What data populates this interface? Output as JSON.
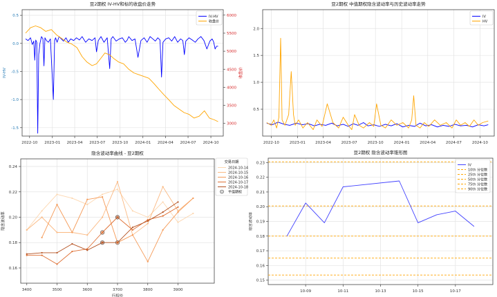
{
  "chart_data": [
    {
      "id": "p1",
      "type": "line",
      "title": "豆2期权 IV-HV和标的收盘价走势",
      "xlabel": "",
      "ylabel": "IV-HV",
      "y2label": "收盘价",
      "xlim": [
        "2022-09-01",
        "2024-11-20"
      ],
      "ylim": [
        -1.65,
        0.6
      ],
      "y2lim": [
        2650,
        6150
      ],
      "xticks": [
        "2022-10-01",
        "2023-01-01",
        "2023-04-01",
        "2023-07-01",
        "2023-10-01",
        "2024-01-01",
        "2024-04-01",
        "2024-07-01",
        "2024-10-01"
      ],
      "xticklabels": [
        "2022-10",
        "2023-01",
        "2023-04",
        "2023-07",
        "2023-10",
        "2024-01",
        "2024-04",
        "2024-07",
        "2024-10"
      ],
      "yticks": [
        -1.5,
        -1.0,
        -0.5,
        0.0,
        0.5
      ],
      "yticklabels": [
        "-1.5",
        "-1.0",
        "-0.5",
        "0.0",
        "0.5"
      ],
      "y2ticks": [
        3000,
        3500,
        4000,
        4500,
        5000,
        5500,
        6000
      ],
      "y2ticklabels": [
        "3000",
        "3500",
        "4000",
        "4500",
        "5000",
        "5500",
        "6000"
      ],
      "grid": true,
      "legend_position": "top-right",
      "legend": [
        "IV-HV",
        "收盘价"
      ],
      "series": [
        {
          "name": "IV-HV",
          "axis": "left",
          "color": "#0000ff",
          "x": [
            "2022-09-15",
            "2022-09-25",
            "2022-10-05",
            "2022-10-12",
            "2022-10-18",
            "2022-10-22",
            "2022-10-26",
            "2022-10-30",
            "2022-11-03",
            "2022-11-07",
            "2022-11-12",
            "2022-11-18",
            "2022-11-24",
            "2022-11-28",
            "2022-12-02",
            "2022-12-08",
            "2022-12-16",
            "2022-12-24",
            "2023-01-05",
            "2023-01-10",
            "2023-01-14",
            "2023-01-20",
            "2023-01-28",
            "2023-02-06",
            "2023-02-15",
            "2023-02-25",
            "2023-03-06",
            "2023-03-16",
            "2023-03-28",
            "2023-04-08",
            "2023-04-20",
            "2023-05-01",
            "2023-05-15",
            "2023-05-28",
            "2023-06-10",
            "2023-06-22",
            "2023-06-28",
            "2023-07-05",
            "2023-07-16",
            "2023-07-28",
            "2023-08-10",
            "2023-08-20",
            "2023-08-26",
            "2023-09-02",
            "2023-09-15",
            "2023-09-28",
            "2023-10-10",
            "2023-10-22",
            "2023-10-30",
            "2023-11-05",
            "2023-11-18",
            "2023-11-30",
            "2023-12-12",
            "2023-12-24",
            "2024-01-06",
            "2024-01-18",
            "2024-01-30",
            "2024-02-10",
            "2024-02-20",
            "2024-03-01",
            "2024-03-10",
            "2024-03-16",
            "2024-03-22",
            "2024-04-02",
            "2024-04-14",
            "2024-04-26",
            "2024-05-08",
            "2024-05-20",
            "2024-06-01",
            "2024-06-10",
            "2024-06-16",
            "2024-06-22",
            "2024-07-05",
            "2024-07-18",
            "2024-07-30",
            "2024-08-10",
            "2024-08-22",
            "2024-09-03",
            "2024-09-15",
            "2024-09-27",
            "2024-10-06",
            "2024-10-12",
            "2024-10-18",
            "2024-10-24",
            "2024-10-30"
          ],
          "y": [
            0.08,
            0.05,
            0.1,
            -0.02,
            0.04,
            -0.3,
            0.06,
            0.02,
            -1.6,
            -0.2,
            0.0,
            0.12,
            0.08,
            -0.4,
            0.1,
            0.05,
            0.02,
            0.08,
            -1.0,
            0.05,
            0.1,
            0.02,
            0.12,
            0.08,
            0.04,
            0.1,
            0.02,
            0.08,
            0.05,
            0.1,
            0.06,
            0.12,
            0.02,
            0.08,
            0.05,
            0.1,
            -0.15,
            0.05,
            0.12,
            0.02,
            0.1,
            -0.45,
            0.08,
            0.12,
            0.04,
            0.08,
            0.1,
            0.02,
            0.06,
            0.12,
            0.05,
            0.08,
            -0.25,
            0.05,
            0.1,
            0.02,
            0.12,
            0.08,
            0.04,
            0.1,
            0.06,
            -0.6,
            0.02,
            0.08,
            0.1,
            0.04,
            0.12,
            0.02,
            0.08,
            0.05,
            -0.2,
            0.04,
            0.1,
            0.06,
            0.02,
            0.08,
            0.12,
            0.05,
            -0.1,
            0.04,
            0.08,
            0.03,
            -0.1,
            -0.05,
            -0.05
          ]
        },
        {
          "name": "收盘价",
          "axis": "right",
          "color": "#ffa500",
          "x": [
            "2022-09-15",
            "2022-10-05",
            "2022-10-25",
            "2022-11-15",
            "2022-12-05",
            "2022-12-28",
            "2023-01-18",
            "2023-02-08",
            "2023-03-01",
            "2023-03-20",
            "2023-04-10",
            "2023-05-01",
            "2023-05-20",
            "2023-06-10",
            "2023-06-28",
            "2023-07-15",
            "2023-08-01",
            "2023-08-20",
            "2023-09-05",
            "2023-09-25",
            "2023-10-15",
            "2023-11-05",
            "2023-11-25",
            "2023-12-15",
            "2024-01-05",
            "2024-01-25",
            "2024-02-15",
            "2024-03-05",
            "2024-03-25",
            "2024-04-15",
            "2024-05-05",
            "2024-05-25",
            "2024-06-15",
            "2024-07-05",
            "2024-07-25",
            "2024-08-15",
            "2024-09-05",
            "2024-09-25",
            "2024-10-15",
            "2024-10-30"
          ],
          "y": [
            5500,
            5650,
            5700,
            5650,
            5550,
            5600,
            5450,
            5350,
            5250,
            5200,
            5100,
            4850,
            4700,
            4600,
            4650,
            4800,
            4950,
            4900,
            4800,
            4700,
            4650,
            4500,
            4400,
            4350,
            4300,
            4250,
            4100,
            3950,
            3800,
            3650,
            3500,
            3400,
            3300,
            3250,
            3150,
            3200,
            3350,
            3150,
            3100,
            3050
          ]
        }
      ]
    },
    {
      "id": "p2",
      "type": "line",
      "title": "豆2期权 中值期权隐含波动率与历史波动率走势",
      "xlabel": "",
      "ylabel": "",
      "xlim": [
        "2022-09-01",
        "2024-11-20"
      ],
      "ylim": [
        0.0,
        2.35
      ],
      "xticks": [
        "2022-10-01",
        "2023-01-01",
        "2023-04-01",
        "2023-07-01",
        "2023-10-01",
        "2024-01-01",
        "2024-04-01",
        "2024-07-01",
        "2024-10-01"
      ],
      "xticklabels": [
        "2022-10",
        "2023-01",
        "2023-04",
        "2023-07",
        "2023-10",
        "2024-01",
        "2024-04",
        "2024-07",
        "2024-10"
      ],
      "yticks": [
        0.5,
        1.0,
        1.5,
        2.0
      ],
      "yticklabels": [
        "0.5",
        "1.0",
        "1.5",
        "2.0"
      ],
      "grid": true,
      "legend_position": "top-right",
      "legend": [
        "IV",
        "HV"
      ],
      "series": [
        {
          "name": "IV",
          "color": "#0000ff",
          "x": [
            "2022-09-15",
            "2022-10-05",
            "2022-10-25",
            "2022-11-15",
            "2022-12-05",
            "2022-12-28",
            "2023-01-18",
            "2023-02-08",
            "2023-03-01",
            "2023-03-20",
            "2023-04-10",
            "2023-05-01",
            "2023-05-20",
            "2023-06-10",
            "2023-06-28",
            "2023-07-15",
            "2023-08-01",
            "2023-08-20",
            "2023-09-05",
            "2023-09-25",
            "2023-10-15",
            "2023-11-05",
            "2023-11-25",
            "2023-12-15",
            "2024-01-05",
            "2024-01-25",
            "2024-02-15",
            "2024-03-05",
            "2024-03-25",
            "2024-04-15",
            "2024-05-05",
            "2024-05-25",
            "2024-06-15",
            "2024-07-05",
            "2024-07-25",
            "2024-08-15",
            "2024-09-05",
            "2024-09-25",
            "2024-10-15",
            "2024-10-30"
          ],
          "y": [
            0.24,
            0.21,
            0.26,
            0.22,
            0.2,
            0.24,
            0.21,
            0.23,
            0.19,
            0.22,
            0.2,
            0.24,
            0.19,
            0.22,
            0.18,
            0.23,
            0.2,
            0.25,
            0.19,
            0.21,
            0.18,
            0.22,
            0.19,
            0.23,
            0.17,
            0.2,
            0.18,
            0.24,
            0.19,
            0.21,
            0.17,
            0.2,
            0.18,
            0.22,
            0.19,
            0.2,
            0.17,
            0.21,
            0.19,
            0.21
          ]
        },
        {
          "name": "HV",
          "color": "#ffa500",
          "x": [
            "2022-09-15",
            "2022-10-01",
            "2022-10-10",
            "2022-10-20",
            "2022-10-28",
            "2022-11-03",
            "2022-11-08",
            "2022-11-18",
            "2022-12-01",
            "2022-12-10",
            "2022-12-18",
            "2022-12-24",
            "2023-01-05",
            "2023-01-20",
            "2023-02-05",
            "2023-02-25",
            "2023-03-10",
            "2023-03-28",
            "2023-04-15",
            "2023-05-05",
            "2023-05-25",
            "2023-06-10",
            "2023-06-28",
            "2023-07-10",
            "2023-07-20",
            "2023-08-05",
            "2023-08-20",
            "2023-09-10",
            "2023-09-25",
            "2023-10-05",
            "2023-10-20",
            "2023-11-05",
            "2023-11-25",
            "2023-12-15",
            "2024-01-05",
            "2024-01-25",
            "2024-02-05",
            "2024-02-12",
            "2024-02-20",
            "2024-03-05",
            "2024-03-20",
            "2024-04-05",
            "2024-04-25",
            "2024-05-15",
            "2024-06-05",
            "2024-06-25",
            "2024-07-10",
            "2024-07-25",
            "2024-08-10",
            "2024-08-25",
            "2024-09-10",
            "2024-09-25",
            "2024-10-10",
            "2024-10-30"
          ],
          "y": [
            0.25,
            0.2,
            0.3,
            0.15,
            0.35,
            1.82,
            0.3,
            0.2,
            0.4,
            1.2,
            0.4,
            0.2,
            0.3,
            0.15,
            0.25,
            0.12,
            0.3,
            0.18,
            0.6,
            0.25,
            0.15,
            0.35,
            0.2,
            0.12,
            0.4,
            0.2,
            0.15,
            0.25,
            0.18,
            0.6,
            0.2,
            0.15,
            0.3,
            0.2,
            0.25,
            0.15,
            0.3,
            0.75,
            0.2,
            0.15,
            0.25,
            0.18,
            0.3,
            0.2,
            0.25,
            0.15,
            0.3,
            0.2,
            0.25,
            0.18,
            0.3,
            0.2,
            0.25,
            0.28
          ]
        }
      ]
    },
    {
      "id": "p3",
      "type": "line",
      "title": "隐含波动率曲线 - 豆2期权",
      "xlabel": "行权价",
      "ylabel": "隐含波动率",
      "xlim": [
        3380,
        4020
      ],
      "ylim": [
        0.148,
        0.246
      ],
      "xticks": [
        3400,
        3500,
        3600,
        3700,
        3800,
        3900
      ],
      "xticklabels": [
        "3400",
        "3500",
        "3600",
        "3700",
        "3800",
        "3900"
      ],
      "yticks": [
        0.16,
        0.18,
        0.2,
        0.22,
        0.24
      ],
      "yticklabels": [
        "0.16",
        "0.18",
        "0.20",
        "0.22",
        "0.24"
      ],
      "grid": true,
      "legend_title": "交易日期",
      "legend_position": "upper-right-outside",
      "legend": [
        "2024-10-14",
        "2024-10-15",
        "2024-10-16",
        "2024-10-17",
        "2024-10-18",
        "平值期权"
      ],
      "series": [
        {
          "name": "2024-10-14",
          "color": "#fdd7b0",
          "x": [
            3400,
            3450,
            3500,
            3550,
            3600,
            3650,
            3700,
            3750,
            3800,
            3850,
            3900,
            3950
          ],
          "y": [
            0.19,
            0.205,
            0.218,
            0.215,
            0.21,
            0.218,
            0.222,
            0.205,
            0.2,
            0.212,
            0.196,
            0.203
          ]
        },
        {
          "name": "2024-10-15",
          "color": "#fbb982",
          "x": [
            3400,
            3450,
            3500,
            3550,
            3600,
            3650,
            3700,
            3750,
            3800,
            3850,
            3900,
            3950
          ],
          "y": [
            0.19,
            0.2,
            0.188,
            0.188,
            0.186,
            0.2,
            0.228,
            0.186,
            0.195,
            0.224,
            0.205,
            0.215
          ]
        },
        {
          "name": "2024-10-16",
          "color": "#f59a57",
          "x": [
            3450,
            3500,
            3550,
            3600,
            3650,
            3700,
            3750,
            3800,
            3850,
            3900,
            3950
          ],
          "y": [
            0.184,
            0.21,
            0.188,
            0.214,
            0.216,
            0.18,
            0.186,
            0.165,
            0.19,
            0.204,
            0.215
          ]
        },
        {
          "name": "2024-10-17",
          "color": "#de6f33",
          "x": [
            3400,
            3450,
            3500,
            3550,
            3600,
            3650,
            3700,
            3750,
            3800,
            3850,
            3900
          ],
          "y": [
            0.17,
            0.17,
            0.163,
            0.173,
            0.175,
            0.188,
            0.2,
            0.19,
            0.198,
            0.201,
            0.208
          ]
        },
        {
          "name": "2024-10-18",
          "color": "#b4501f",
          "x": [
            3400,
            3450,
            3500,
            3550,
            3600,
            3650,
            3700,
            3750,
            3800,
            3850,
            3900
          ],
          "y": [
            0.171,
            0.172,
            0.172,
            0.179,
            0.174,
            0.18,
            0.18,
            0.192,
            0.197,
            0.204,
            0.212
          ]
        }
      ],
      "atm_points": [
        {
          "x": 3650,
          "y": 0.18,
          "color": "#b4501f"
        },
        {
          "x": 3650,
          "y": 0.188,
          "color": "#de6f33"
        },
        {
          "x": 3700,
          "y": 0.18,
          "color": "#de6f33"
        },
        {
          "x": 3700,
          "y": 0.2,
          "color": "#b4501f"
        }
      ]
    },
    {
      "id": "p4",
      "type": "line",
      "title": "豆2期权 隐含波动率锥形图",
      "xlabel": "",
      "ylabel": "隐含波动率",
      "xlim": [
        "2024-10-07",
        "2024-10-19"
      ],
      "ylim": [
        0.147,
        0.233
      ],
      "xticks": [
        "2024-10-09",
        "2024-10-11",
        "2024-10-13",
        "2024-10-15",
        "2024-10-17"
      ],
      "xticklabels": [
        "10-09",
        "10-11",
        "10-13",
        "10-15",
        "10-17"
      ],
      "yticks": [
        0.15,
        0.16,
        0.17,
        0.18,
        0.19,
        0.2,
        0.21,
        0.22,
        0.23
      ],
      "yticklabels": [
        "0.15",
        "0.16",
        "0.17",
        "0.18",
        "0.19",
        "0.20",
        "0.21",
        "0.22",
        "0.23"
      ],
      "grid": true,
      "legend_position": "top-right",
      "legend": [
        "IV",
        "10th 分位数",
        "25th 分位数",
        "50th 分位数",
        "75th 分位数",
        "90th 分位数"
      ],
      "series": [
        {
          "name": "IV",
          "color": "#4040ff",
          "x": [
            "2024-10-08",
            "2024-10-09",
            "2024-10-10",
            "2024-10-11",
            "2024-10-14",
            "2024-10-15",
            "2024-10-16",
            "2024-10-17",
            "2024-10-18"
          ],
          "y": [
            0.18,
            0.2025,
            0.189,
            0.2135,
            0.2175,
            0.189,
            0.1945,
            0.197,
            0.1865
          ]
        }
      ],
      "quantiles": [
        {
          "name": "10th 分位数",
          "value": 0.1535
        },
        {
          "name": "25th 分位数",
          "value": 0.165
        },
        {
          "name": "50th 分位数",
          "value": 0.18
        },
        {
          "name": "75th 分位数",
          "value": 0.2005
        },
        {
          "name": "90th 分位数",
          "value": 0.2305
        }
      ],
      "quantile_color": "#ffa500"
    }
  ]
}
